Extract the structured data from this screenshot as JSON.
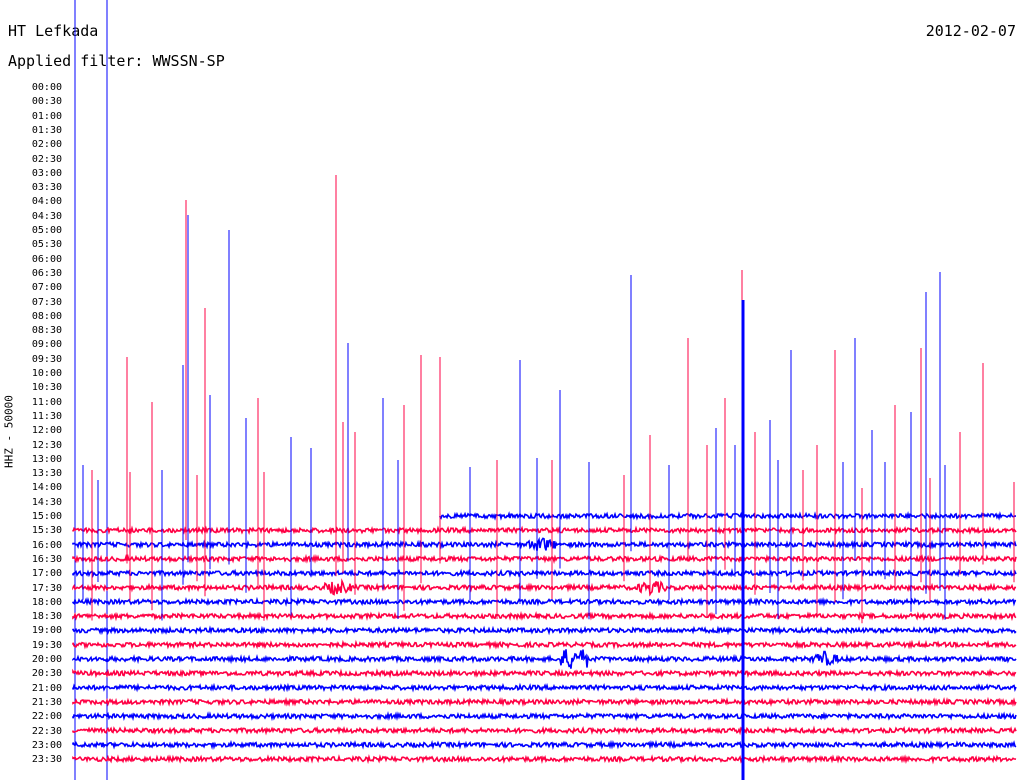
{
  "header": {
    "station": "HT Lefkada",
    "date": "2012-02-07",
    "filter_label": "Applied filter: WWSSN-SP"
  },
  "chart_data": {
    "type": "line",
    "title": "HT Lefkada",
    "ylabel": "HHZ - 50000",
    "row_labels": [
      "00:00",
      "00:30",
      "01:00",
      "01:30",
      "02:00",
      "02:30",
      "03:00",
      "03:30",
      "04:00",
      "04:30",
      "05:00",
      "05:30",
      "06:00",
      "06:30",
      "07:00",
      "07:30",
      "08:00",
      "08:30",
      "09:00",
      "09:30",
      "10:00",
      "10:30",
      "11:00",
      "11:30",
      "12:00",
      "12:30",
      "13:00",
      "13:30",
      "14:00",
      "14:30",
      "15:00",
      "15:30",
      "16:00",
      "16:30",
      "17:00",
      "17:30",
      "18:00",
      "18:30",
      "19:00",
      "19:30",
      "20:00",
      "20:30",
      "21:00",
      "21:30",
      "22:00",
      "22:30",
      "23:00",
      "23:30"
    ],
    "first_recorded_row": "15:00",
    "series_colors": [
      "#0000ff",
      "#ff0044"
    ],
    "events": [
      {
        "row": "17:30",
        "minute": 13,
        "kind": "burst"
      },
      {
        "row": "17:30",
        "minute": 33,
        "kind": "burst"
      },
      {
        "row": "20:00",
        "minute": 28,
        "kind": "large"
      },
      {
        "row": "20:00",
        "minute": 44,
        "kind": "burst"
      },
      {
        "row": "16:00",
        "minute": 26,
        "kind": "burst"
      }
    ]
  }
}
